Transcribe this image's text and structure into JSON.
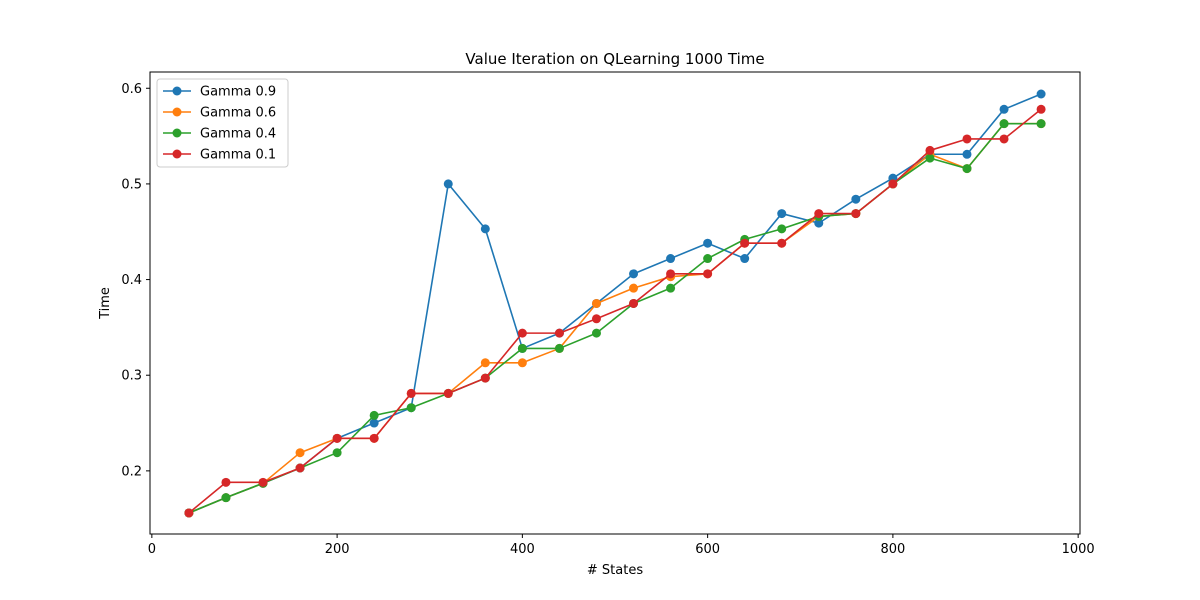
{
  "chart_data": {
    "type": "line",
    "title": "Value Iteration on QLearning 1000  Time",
    "xlabel": "# States",
    "ylabel": "Time",
    "xlim": [
      -2,
      1002
    ],
    "ylim": [
      0.134,
      0.617
    ],
    "xticks": [
      0,
      200,
      400,
      600,
      800,
      1000
    ],
    "yticks": [
      0.2,
      0.3,
      0.4,
      0.5,
      0.6
    ],
    "grid": false,
    "legend_position": "upper-left",
    "markers": "circle",
    "x": [
      40,
      80,
      120,
      160,
      200,
      240,
      280,
      320,
      360,
      400,
      440,
      480,
      520,
      560,
      600,
      640,
      680,
      720,
      760,
      800,
      840,
      880,
      920,
      960
    ],
    "series": [
      {
        "name": "Gamma 0.9",
        "color": "#1f77b4",
        "values": [
          0.156,
          0.172,
          0.187,
          0.203,
          0.234,
          0.25,
          0.266,
          0.5,
          0.453,
          0.328,
          0.344,
          0.375,
          0.406,
          0.422,
          0.438,
          0.422,
          0.469,
          0.459,
          0.484,
          0.506,
          0.531,
          0.531,
          0.578,
          0.594
        ]
      },
      {
        "name": "Gamma 0.6",
        "color": "#ff7f0e",
        "values": [
          0.156,
          0.172,
          0.187,
          0.219,
          0.234,
          0.234,
          0.281,
          0.281,
          0.313,
          0.313,
          0.328,
          0.375,
          0.391,
          0.403,
          0.406,
          0.438,
          0.438,
          0.466,
          0.469,
          0.5,
          0.531,
          0.516,
          0.563,
          0.563
        ]
      },
      {
        "name": "Gamma 0.4",
        "color": "#2ca02c",
        "values": [
          0.156,
          0.172,
          0.187,
          0.203,
          0.219,
          0.258,
          0.266,
          0.281,
          0.297,
          0.328,
          0.328,
          0.344,
          0.375,
          0.391,
          0.422,
          0.442,
          0.453,
          0.466,
          0.469,
          0.5,
          0.527,
          0.516,
          0.563,
          0.563
        ]
      },
      {
        "name": "Gamma 0.1",
        "color": "#d62728",
        "values": [
          0.156,
          0.188,
          0.188,
          0.203,
          0.234,
          0.234,
          0.281,
          0.281,
          0.297,
          0.344,
          0.344,
          0.359,
          0.375,
          0.406,
          0.406,
          0.438,
          0.438,
          0.469,
          0.469,
          0.5,
          0.535,
          0.547,
          0.547,
          0.578
        ]
      }
    ]
  }
}
